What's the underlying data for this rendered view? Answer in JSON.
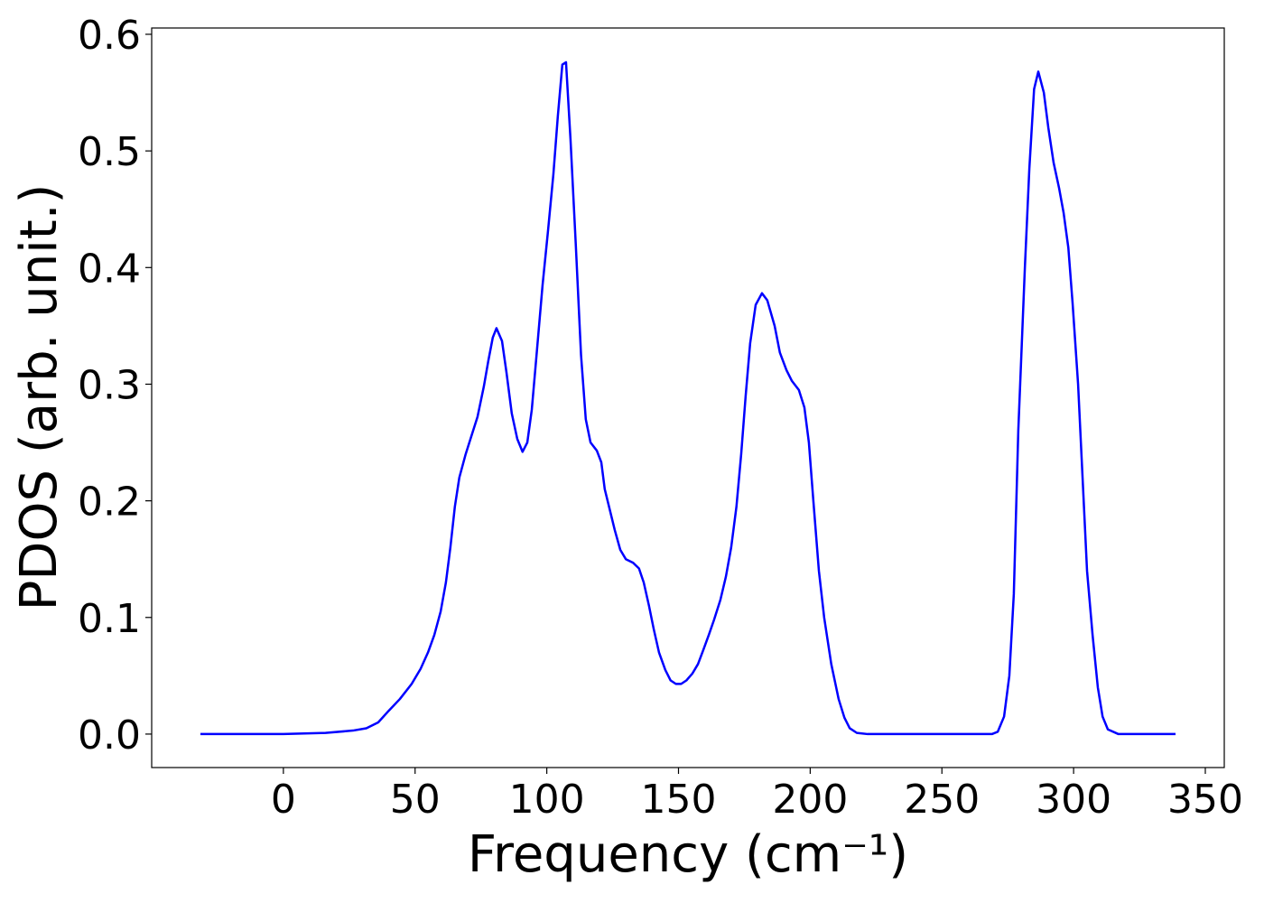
{
  "chart_data": {
    "type": "line",
    "x_label": "Frequency (cm⁻¹)",
    "y_label": "PDOS (arb. unit.)",
    "x": [
      -31.5,
      0,
      16,
      26.4,
      31.5,
      36,
      40,
      44.2,
      48.7,
      52.1,
      54.9,
      57.3,
      59.7,
      61.7,
      63.4,
      65.1,
      66.8,
      69.2,
      71.3,
      73.7,
      76.1,
      77.8,
      79.5,
      80.9,
      83,
      84.7,
      86.7,
      88.8,
      90.8,
      92.6,
      94.3,
      96.3,
      98.4,
      100.4,
      102.5,
      104.2,
      105.9,
      107.3,
      109,
      111,
      113,
      114.8,
      116.6,
      119,
      120.7,
      122,
      125.8,
      127.9,
      130,
      132.7,
      135,
      136.8,
      138.8,
      140.6,
      142.6,
      145,
      147,
      149,
      151,
      153,
      155.3,
      157.4,
      159.4,
      161.5,
      163.5,
      165.9,
      168,
      170,
      172,
      173.8,
      175.5,
      177.2,
      179.3,
      181.7,
      183.7,
      186.5,
      188.5,
      191,
      193,
      195.7,
      197.8,
      199.5,
      201.2,
      203.3,
      205.3,
      208,
      210.8,
      213,
      215,
      217.7,
      221.8,
      269,
      271.2,
      273.6,
      275.6,
      277.3,
      279,
      281.5,
      283.2,
      285,
      286.6,
      288.7,
      290.4,
      292.4,
      294.5,
      296.2,
      298,
      299.6,
      301.7,
      303.4,
      305.1,
      307.2,
      309.2,
      311,
      313,
      317,
      338.7
    ],
    "series": [
      {
        "color": "#0000ff",
        "values": [
          0,
          0,
          0.001,
          0.003,
          0.005,
          0.01,
          0.02,
          0.03,
          0.043,
          0.056,
          0.07,
          0.085,
          0.105,
          0.13,
          0.16,
          0.195,
          0.22,
          0.24,
          0.255,
          0.272,
          0.298,
          0.32,
          0.34,
          0.348,
          0.337,
          0.31,
          0.275,
          0.253,
          0.242,
          0.25,
          0.278,
          0.33,
          0.385,
          0.43,
          0.48,
          0.53,
          0.574,
          0.576,
          0.51,
          0.42,
          0.325,
          0.27,
          0.25,
          0.243,
          0.233,
          0.21,
          0.175,
          0.158,
          0.15,
          0.147,
          0.142,
          0.13,
          0.11,
          0.09,
          0.07,
          0.055,
          0.046,
          0.043,
          0.043,
          0.046,
          0.052,
          0.06,
          0.072,
          0.085,
          0.098,
          0.115,
          0.135,
          0.16,
          0.195,
          0.24,
          0.29,
          0.335,
          0.368,
          0.378,
          0.372,
          0.35,
          0.327,
          0.312,
          0.303,
          0.295,
          0.28,
          0.25,
          0.2,
          0.14,
          0.1,
          0.06,
          0.03,
          0.014,
          0.005,
          0.001,
          0,
          0,
          0.002,
          0.015,
          0.05,
          0.12,
          0.26,
          0.4,
          0.485,
          0.553,
          0.568,
          0.55,
          0.52,
          0.49,
          0.468,
          0.447,
          0.417,
          0.37,
          0.3,
          0.22,
          0.14,
          0.085,
          0.04,
          0.015,
          0.004,
          0,
          0
        ]
      }
    ],
    "xlim": [
      -50,
      357.2
    ],
    "ylim": [
      -0.0287,
      0.6054
    ],
    "xticks": [
      0,
      50,
      100,
      150,
      200,
      250,
      300,
      350
    ],
    "yticks": [
      {
        "value": 0,
        "label": "0.0"
      },
      0.1,
      0.2,
      0.3,
      0.4,
      0.5,
      0.6
    ],
    "grid": false
  }
}
